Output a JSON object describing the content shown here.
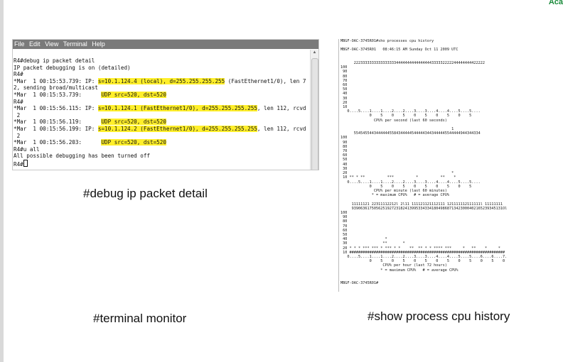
{
  "brand": {
    "text": "Aca"
  },
  "terminal": {
    "menu": [
      "File",
      "Edit",
      "View",
      "Terminal",
      "Help"
    ],
    "lines": [
      {
        "parts": [
          {
            "t": "R4#debug ip packet detail"
          }
        ]
      },
      {
        "parts": [
          {
            "t": "IP packet debugging is on (detailed)"
          }
        ]
      },
      {
        "parts": [
          {
            "t": "R4#"
          }
        ]
      },
      {
        "parts": [
          {
            "t": "*Mar  1 00:15:53.739: IP: "
          },
          {
            "t": "s=10.1.124.4 (local), d=255.255.255.255",
            "hl": true
          },
          {
            "t": " (FastEthernet1/0), len 7"
          }
        ]
      },
      {
        "parts": [
          {
            "t": "2, sending broad/multicast"
          }
        ]
      },
      {
        "parts": [
          {
            "t": "*Mar  1 00:15:53.739:      "
          },
          {
            "t": "UDP src=520, dst=520",
            "hl": true
          }
        ]
      },
      {
        "parts": [
          {
            "t": "R4#"
          }
        ]
      },
      {
        "parts": [
          {
            "t": "*Mar  1 00:15:56.115: IP: "
          },
          {
            "t": "s=10.1.124.1 (FastEthernet1/0), d=255.255.255.255",
            "hl": true
          },
          {
            "t": ", len 112, rcvd"
          }
        ]
      },
      {
        "parts": [
          {
            "t": " 2"
          }
        ]
      },
      {
        "parts": [
          {
            "t": "*Mar  1 00:15:56.119:      "
          },
          {
            "t": "UDP src=520, dst=520",
            "hl": true
          }
        ]
      },
      {
        "parts": [
          {
            "t": "*Mar  1 00:15:56.199: IP: "
          },
          {
            "t": "s=10.1.124.2 (FastEthernet1/0), d=255.255.255.255",
            "hl": true
          },
          {
            "t": ", len 112, rcvd"
          }
        ]
      },
      {
        "parts": [
          {
            "t": " 2"
          }
        ]
      },
      {
        "parts": [
          {
            "t": "*Mar  1 00:15:56.203:      "
          },
          {
            "t": "UDP src=520, dst=520",
            "hl": true
          }
        ]
      },
      {
        "parts": [
          {
            "t": "R4#u all"
          }
        ]
      },
      {
        "parts": [
          {
            "t": "All possible debugging has been turned off"
          }
        ]
      },
      {
        "parts": [
          {
            "t": "R4#"
          }
        ],
        "cursor": true
      }
    ]
  },
  "captions": {
    "debug": "#debug ip packet detail",
    "terminal_monitor": "#terminal monitor",
    "cpu_history": "#show process cpu history"
  },
  "cpu": {
    "lines": [
      "MBGF-OAC-3745R01#sho processes cpu history",
      "",
      "MBGF-OAC-3745R01   08:46:15 AM Sunday Oct 11 2009 UTC",
      "",
      "",
      "      22233333333333333334444444444444444333332222244444444422222",
      "100",
      " 90",
      " 80",
      " 70",
      " 60",
      " 50",
      " 40",
      " 30",
      " 20",
      " 10",
      "   0....5....1....1....2....2....3....3....4....4....5....5....",
      "             0    5    0    5    0    5    0    5    0    5",
      "               CPU% per second (last 60 seconds)",
      "",
      "                                                  1",
      "      554545544344444455843444445444443443444445544444944344334",
      "100",
      " 90",
      " 80",
      " 70",
      " 60",
      " 50",
      " 40",
      " 30",
      " 20                                               *",
      " 10 ** * **          ***          *          **    *",
      "   0....5....1....1....2....2....3....3....4....4....5....5....",
      "             0    5    0    5    0    5    0    5    0    5",
      "               CPU% per minute (last 60 minutes)",
      "              * = maximum CPU%   # = average CPU%",
      "",
      "     11111121 22311112212l 2l11 111121121112111 121111112111111l 11111111",
      "     93906361750562519272318241399533433418049868713423000402165239345131Ol",
      "100",
      " 90",
      " 80",
      " 70",
      " 60",
      " 50",
      " 40                 *",
      " 30                **       *",
      " 20 * * * *** *** * *** * *    **  ** * * **** ***     *   **    *     *",
      " 10 ######################################################################",
      "   0....5....1....1....2....2....3....3....4....4....5....5....6....6....7.",
      "             0    5    0    5    0    5    0    5    0    5    0    5    0",
      "                   CPU% per hour (last 72 hours)",
      "                  * = maximum CPU%   # = average CPU%",
      "",
      "",
      "MBGF-OAC-3745R01#"
    ]
  }
}
